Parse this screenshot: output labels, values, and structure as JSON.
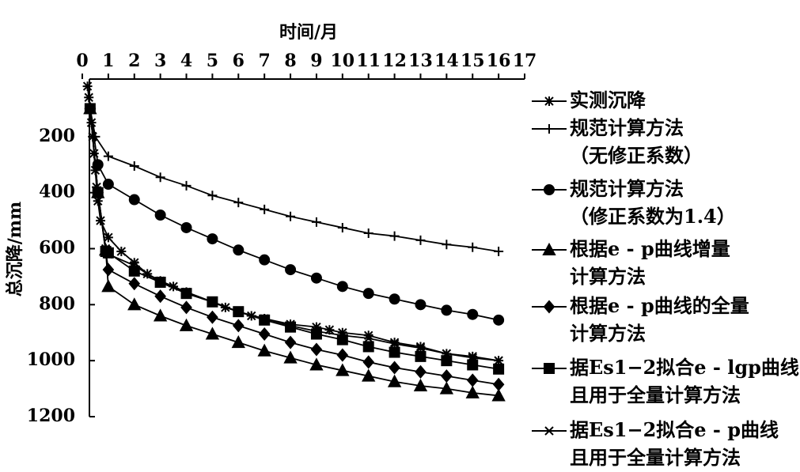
{
  "chart_data": {
    "type": "line",
    "x_label": "时间/月",
    "y_label": "总沉降/mm",
    "xlim": [
      0,
      17
    ],
    "xticks": [
      0,
      1,
      2,
      3,
      4,
      5,
      6,
      7,
      8,
      9,
      10,
      11,
      12,
      13,
      14,
      15,
      16,
      17
    ],
    "ylim": [
      0,
      1200
    ],
    "yticks": [
      200,
      400,
      600,
      800,
      1000,
      1200
    ],
    "y_reversed": true,
    "series": [
      {
        "name": "实测沉降",
        "color": "#000000",
        "marker": "asterisk",
        "x": [
          0.2,
          0.25,
          0.3,
          0.35,
          0.4,
          0.45,
          0.5,
          0.55,
          0.6,
          0.7,
          1,
          1.5,
          2,
          2.5,
          3,
          3.5,
          4,
          5,
          5.5,
          6,
          6.5,
          7,
          8,
          9,
          9.5,
          10,
          11,
          12,
          13,
          14,
          15,
          16
        ],
        "values": [
          20,
          60,
          100,
          150,
          200,
          260,
          320,
          380,
          430,
          500,
          560,
          610,
          650,
          690,
          715,
          735,
          755,
          790,
          810,
          825,
          840,
          850,
          870,
          880,
          890,
          900,
          910,
          935,
          950,
          975,
          985,
          1000
        ]
      },
      {
        "name": "规范计算方法\n（无修正系数）",
        "color": "#000000",
        "marker": "plus",
        "x": [
          0.3,
          0.5,
          1,
          2,
          3,
          4,
          5,
          6,
          7,
          8,
          9,
          10,
          11,
          12,
          13,
          14,
          15,
          16
        ],
        "values": [
          100,
          200,
          270,
          305,
          345,
          375,
          410,
          435,
          460,
          485,
          505,
          525,
          545,
          555,
          570,
          585,
          595,
          610
        ]
      },
      {
        "name": "规范计算方法\n（修正系数为1.4）",
        "color": "#000000",
        "marker": "circle",
        "x": [
          0.3,
          0.6,
          1,
          2,
          3,
          4,
          5,
          6,
          7,
          8,
          9,
          10,
          11,
          12,
          13,
          14,
          15,
          16
        ],
        "values": [
          100,
          300,
          370,
          425,
          480,
          525,
          565,
          605,
          640,
          675,
          705,
          735,
          760,
          780,
          800,
          820,
          835,
          855
        ]
      },
      {
        "name": "根据e - p曲线增量\n计算方法",
        "color": "#000000",
        "marker": "triangle",
        "x": [
          0.3,
          0.6,
          0.9,
          1,
          2,
          3,
          4,
          5,
          6,
          7,
          8,
          9,
          10,
          11,
          12,
          13,
          14,
          15,
          16
        ],
        "values": [
          100,
          400,
          605,
          735,
          800,
          840,
          875,
          905,
          935,
          965,
          990,
          1015,
          1035,
          1055,
          1075,
          1090,
          1100,
          1115,
          1125
        ]
      },
      {
        "name": "根据e - p曲线的全量\n计算方法",
        "color": "#000000",
        "marker": "diamond",
        "x": [
          0.3,
          0.6,
          0.9,
          1,
          2,
          3,
          4,
          5,
          6,
          7,
          8,
          9,
          10,
          11,
          12,
          13,
          14,
          15,
          16
        ],
        "values": [
          100,
          400,
          610,
          675,
          725,
          770,
          810,
          845,
          875,
          905,
          935,
          960,
          980,
          1005,
          1025,
          1040,
          1055,
          1070,
          1085
        ]
      },
      {
        "name": "据Es1−2拟合e - lgp曲线\n且用于全量计算方法",
        "color": "#000000",
        "marker": "square",
        "x": [
          0.3,
          0.6,
          0.9,
          1,
          2,
          3,
          4,
          5,
          6,
          7,
          8,
          9,
          10,
          11,
          12,
          13,
          14,
          15,
          16
        ],
        "values": [
          100,
          400,
          610,
          615,
          680,
          720,
          760,
          790,
          825,
          855,
          880,
          905,
          925,
          950,
          970,
          985,
          1000,
          1015,
          1030
        ]
      },
      {
        "name": "据Es1−2拟合e - p曲线\n且用于全量计算方法",
        "color": "#000000",
        "marker": "x",
        "x": [
          0.3,
          0.6,
          0.9,
          1,
          2,
          3,
          4,
          5,
          6,
          7,
          8,
          9,
          10,
          11,
          12,
          13,
          14,
          15,
          16
        ],
        "values": [
          100,
          400,
          600,
          620,
          660,
          720,
          760,
          790,
          825,
          850,
          875,
          895,
          910,
          920,
          940,
          955,
          975,
          990,
          1000
        ]
      }
    ]
  }
}
